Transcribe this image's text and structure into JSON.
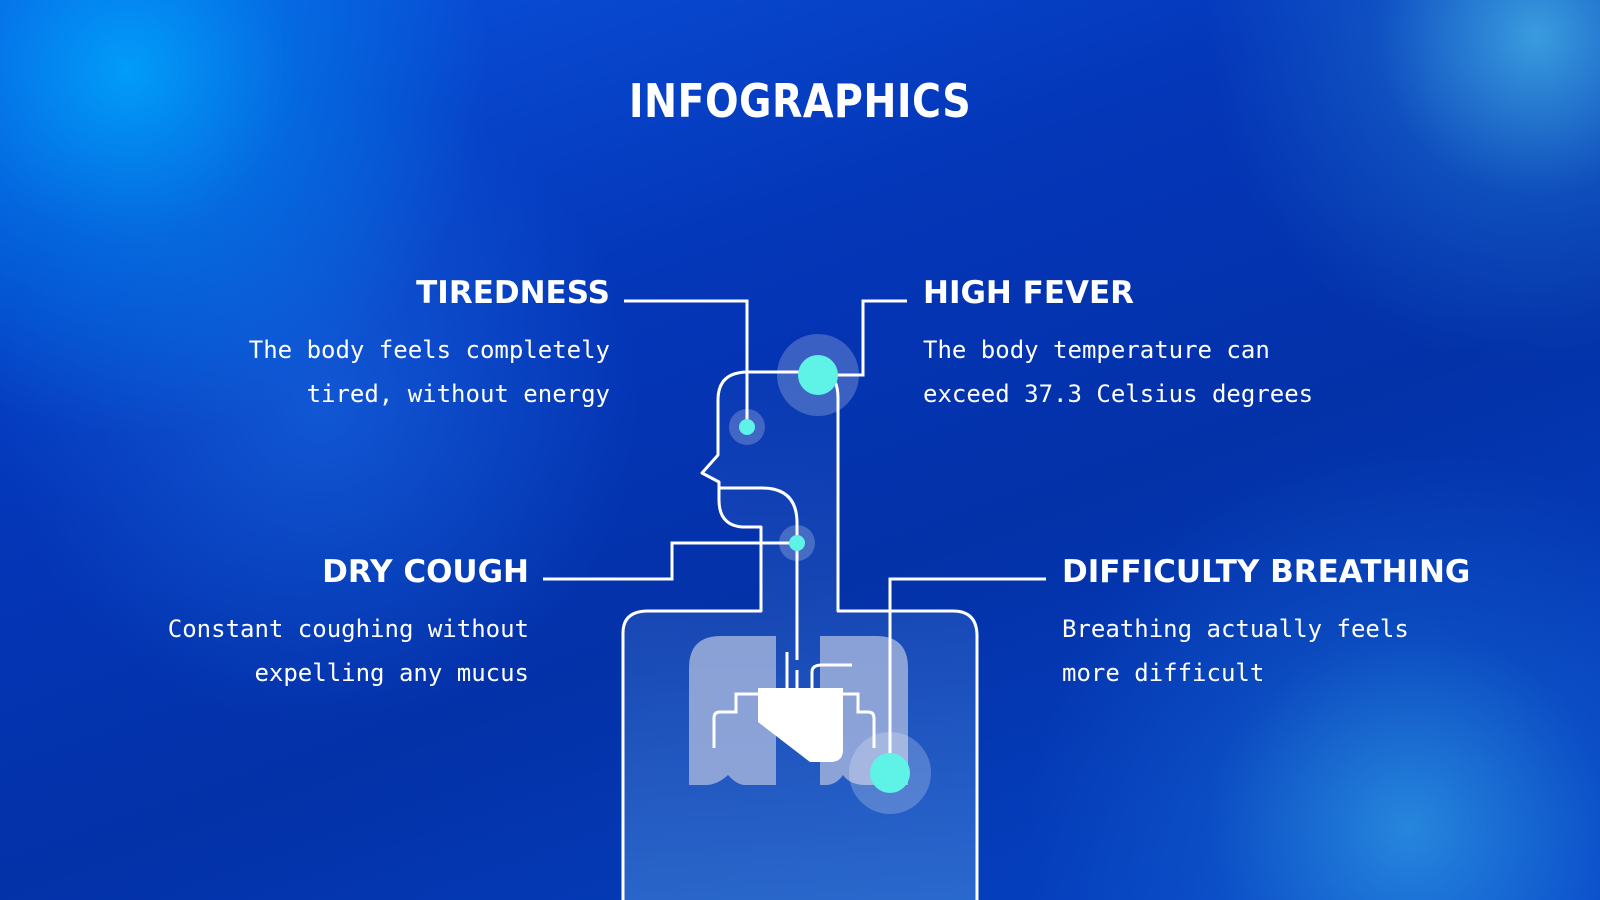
{
  "title": "INFOGRAPHICS",
  "symptoms": [
    {
      "heading": "TIREDNESS",
      "lines": [
        "The body feels completely",
        "tired, without energy"
      ]
    },
    {
      "heading": "HIGH FEVER",
      "lines": [
        "The body temperature can",
        "exceed 37.3 Celsius degrees"
      ]
    },
    {
      "heading": "DRY COUGH",
      "lines": [
        "Constant coughing without",
        "expelling any mucus"
      ]
    },
    {
      "heading": "DIFFICULTY BREATHING",
      "lines": [
        "Breathing actually feels",
        "more difficult"
      ]
    }
  ],
  "colors": {
    "background": "#0436b8",
    "line": "#ffffff",
    "marker": "#5ff2e6",
    "organ": "#9fb0dc"
  },
  "icons": [
    "human-body-outline-icon",
    "lungs-icon",
    "heart-icon"
  ]
}
